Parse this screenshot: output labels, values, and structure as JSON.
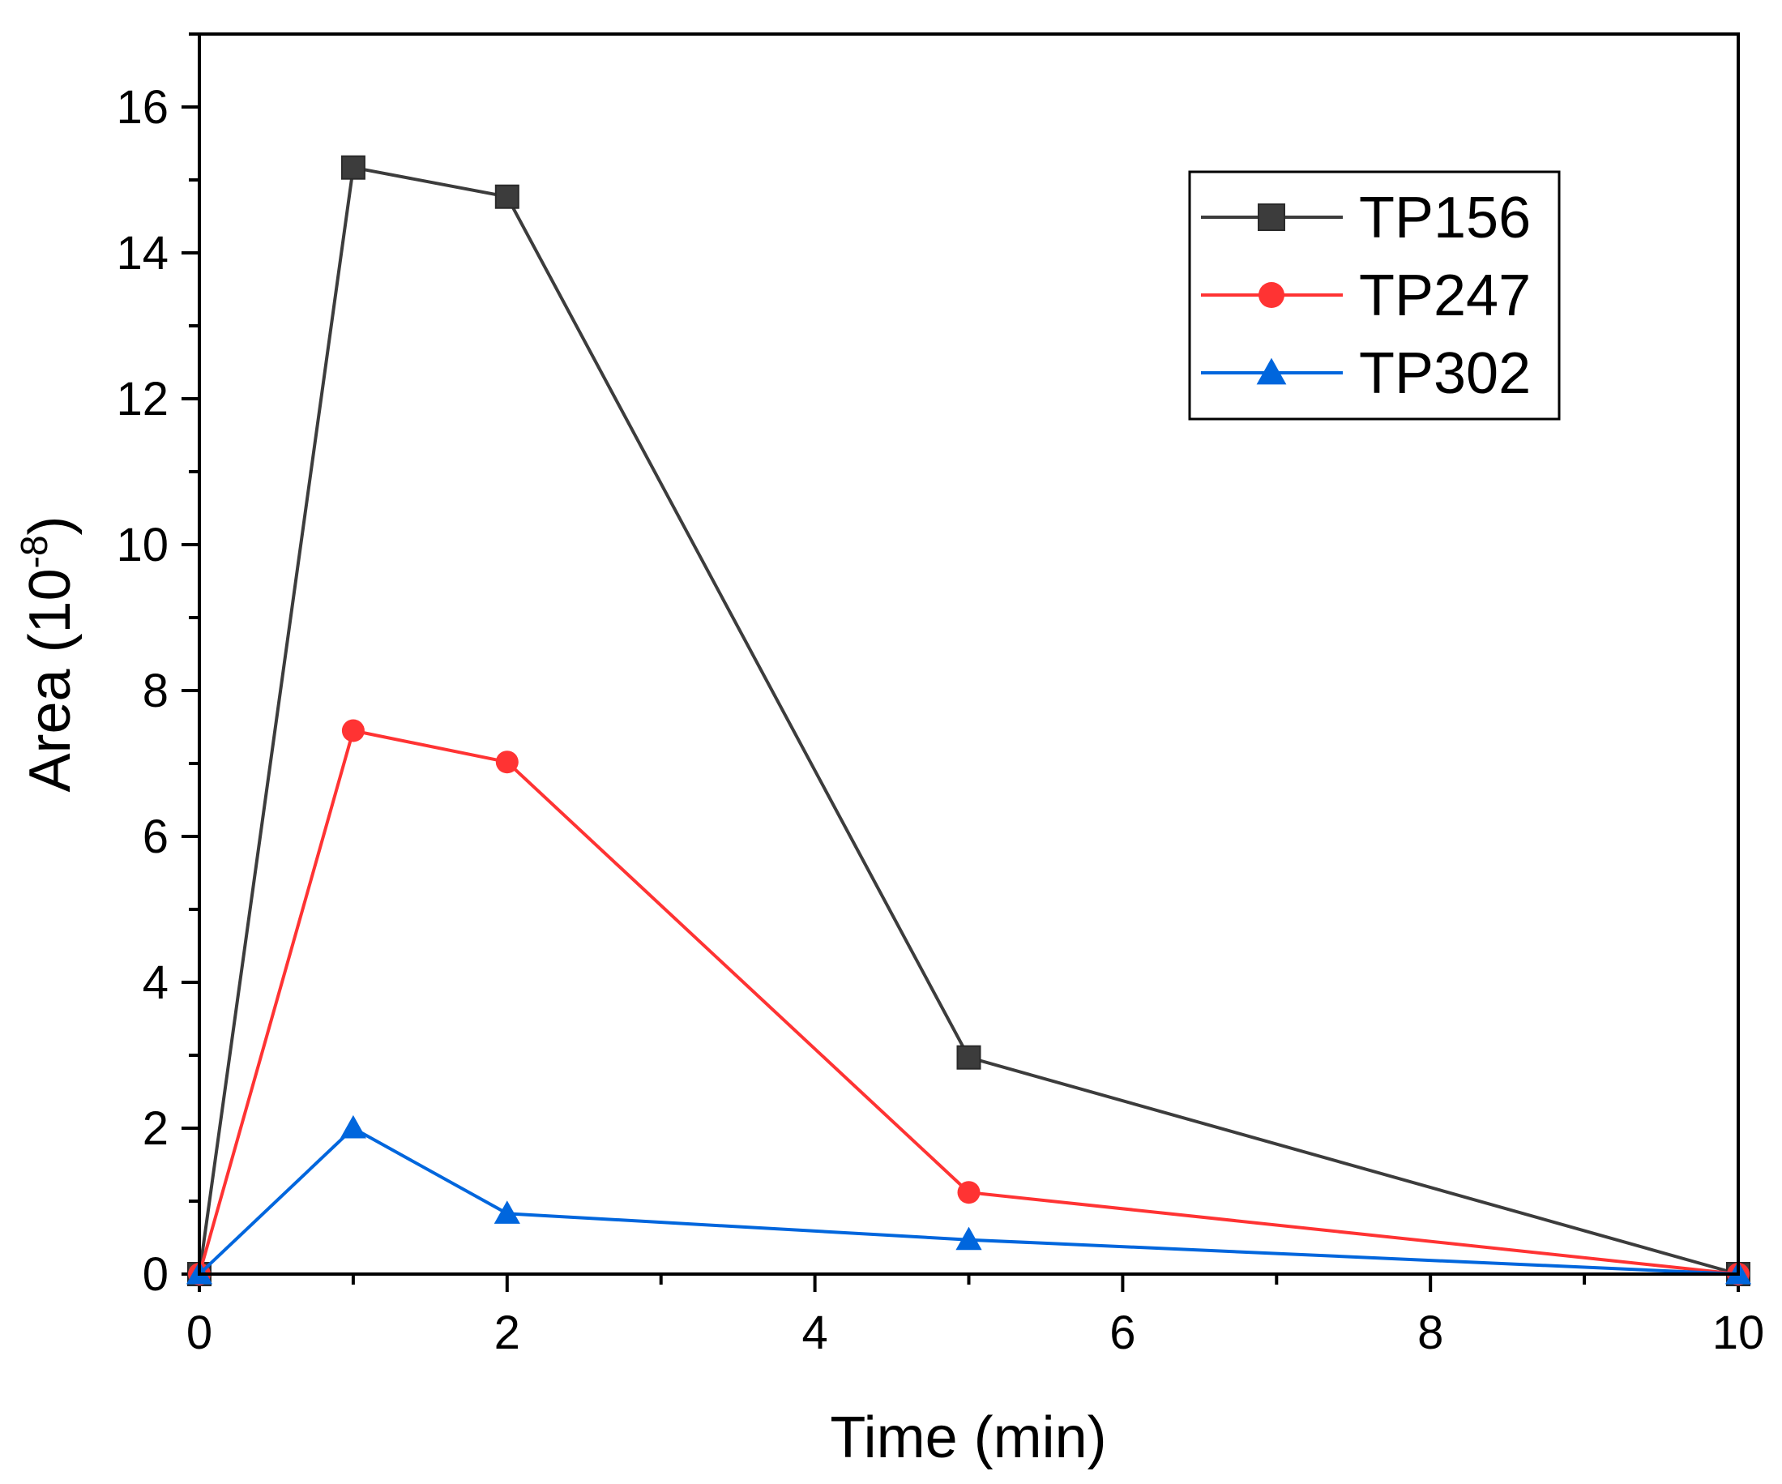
{
  "chart_data": {
    "type": "line",
    "title": "",
    "xlabel": "Time (min)",
    "ylabel_main": "Area (10",
    "ylabel_sup": "-8",
    "ylabel_end": ")",
    "xlim": [
      0,
      10
    ],
    "ylim": [
      0,
      17
    ],
    "xticks": [
      0,
      2,
      4,
      6,
      8,
      10
    ],
    "xtick_labels": [
      "0",
      "2",
      "4",
      "6",
      "8",
      "10"
    ],
    "yticks": [
      0,
      2,
      4,
      6,
      8,
      10,
      12,
      14,
      16
    ],
    "ytick_labels": [
      "0",
      "2",
      "4",
      "6",
      "8",
      "10",
      "12",
      "14",
      "16"
    ],
    "x_minor_step": 1,
    "y_minor_step": 1,
    "grid": false,
    "legend_position": "top-right",
    "series": [
      {
        "name": "TP156",
        "color": "#3c3c3c",
        "marker": "square",
        "x": [
          0,
          1,
          2,
          5,
          10
        ],
        "y": [
          0,
          15.17,
          14.77,
          2.97,
          0
        ]
      },
      {
        "name": "TP247",
        "color": "#ff3333",
        "marker": "circle",
        "x": [
          0,
          1,
          2,
          5,
          10
        ],
        "y": [
          0,
          7.45,
          7.02,
          1.12,
          0
        ]
      },
      {
        "name": "TP302",
        "color": "#0066dd",
        "marker": "triangle",
        "x": [
          0,
          1,
          2,
          5,
          10
        ],
        "y": [
          0,
          2.0,
          0.83,
          0.47,
          0
        ]
      }
    ]
  }
}
